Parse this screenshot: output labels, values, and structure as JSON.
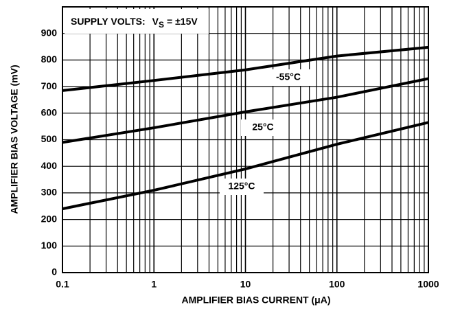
{
  "chart_data": {
    "type": "line",
    "xlabel": "AMPLIFIER BIAS CURRENT (μA)",
    "ylabel": "AMPLIFIER BIAS VOLTAGE (mV)",
    "note": {
      "label": "SUPPLY VOLTS:",
      "symbol": "V",
      "subscript": "S",
      "value": "= ±15V"
    },
    "x": [
      0.1,
      1,
      10,
      100,
      1000
    ],
    "series": [
      {
        "name": "-55°C",
        "color": "#000000",
        "values": [
          685,
          723,
          763,
          815,
          848
        ]
      },
      {
        "name": "25°C",
        "color": "#000000",
        "values": [
          490,
          545,
          605,
          660,
          730
        ]
      },
      {
        "name": "125°C",
        "color": "#000000",
        "values": [
          240,
          310,
          390,
          483,
          565
        ]
      }
    ],
    "xscale": "log",
    "xlim": [
      0.1,
      1000
    ],
    "xticks": [
      0.1,
      1,
      10,
      100,
      1000
    ],
    "ylim": [
      0,
      1000
    ],
    "yticks": [
      0,
      100,
      200,
      300,
      400,
      500,
      600,
      700,
      800,
      900
    ],
    "grid": true
  }
}
